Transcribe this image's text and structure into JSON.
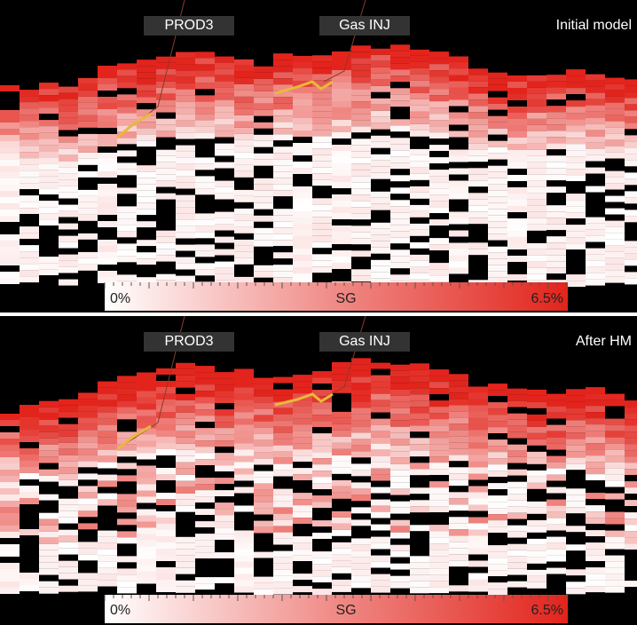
{
  "panels": [
    {
      "title": "Initial model",
      "wells": [
        "PROD3",
        "Gas INJ"
      ],
      "colorbar": {
        "min_label": "0%",
        "label": "SG",
        "max_label": "6.5%"
      }
    },
    {
      "title": "After HM",
      "wells": [
        "PROD3",
        "Gas INJ"
      ],
      "colorbar": {
        "min_label": "0%",
        "label": "SG",
        "max_label": "6.5%"
      }
    }
  ]
}
